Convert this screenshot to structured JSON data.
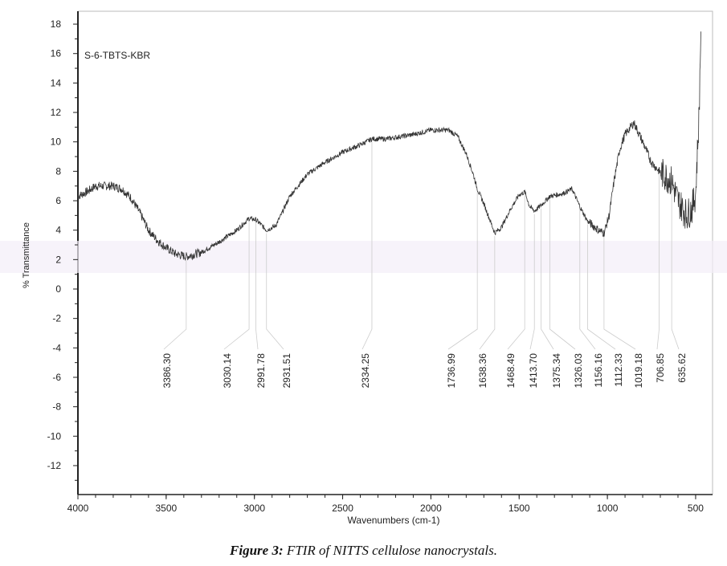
{
  "chart_data": {
    "type": "line",
    "title": "",
    "sample_label": "S-6-TBTS-KBR",
    "xlabel": "Wavenumbers (cm-1)",
    "ylabel": "% Transmittance",
    "xlim": [
      4000,
      450
    ],
    "ylim": [
      -13.5,
      18.5
    ],
    "x_reversed": true,
    "grid": false,
    "line_color": "#333333",
    "x_ticks": [
      4000,
      3500,
      3000,
      2500,
      2000,
      1500,
      1000,
      500
    ],
    "y_ticks": [
      18,
      16,
      14,
      12,
      10,
      8,
      6,
      4,
      2,
      0,
      -2,
      -4,
      -6,
      -8,
      -10,
      -12
    ],
    "series": [
      {
        "x": [
          4000,
          3950,
          3900,
          3850,
          3800,
          3750,
          3700,
          3650,
          3600,
          3550,
          3500,
          3450,
          3386,
          3300,
          3200,
          3100,
          3030,
          2991,
          2931,
          2880,
          2850,
          2800,
          2700,
          2600,
          2500,
          2400,
          2334,
          2250,
          2100,
          2000,
          1900,
          1850,
          1800,
          1760,
          1737,
          1700,
          1660,
          1638,
          1600,
          1550,
          1500,
          1468,
          1440,
          1413,
          1375,
          1326,
          1250,
          1200,
          1156,
          1112,
          1050,
          1019,
          990,
          960,
          930,
          900,
          850,
          800,
          750,
          706,
          650,
          636,
          600,
          550,
          520,
          500,
          480,
          470
        ],
        "y": [
          6.3,
          6.6,
          7.0,
          7.0,
          7.0,
          6.8,
          6.2,
          5.2,
          4.0,
          3.3,
          2.8,
          2.4,
          2.2,
          2.5,
          3.2,
          4.0,
          4.8,
          4.7,
          4.0,
          4.3,
          5.0,
          6.3,
          7.8,
          8.6,
          9.3,
          9.8,
          10.2,
          10.2,
          10.5,
          10.8,
          10.8,
          10.4,
          9.2,
          7.8,
          6.8,
          5.8,
          4.5,
          3.8,
          4.2,
          5.4,
          6.4,
          6.6,
          5.6,
          5.3,
          5.7,
          6.3,
          6.5,
          6.8,
          5.6,
          4.6,
          4.0,
          3.8,
          5.0,
          7.5,
          9.5,
          10.5,
          11.3,
          10.0,
          8.6,
          8.0,
          7.5,
          7.3,
          6.0,
          5.0,
          5.5,
          6.5,
          12,
          18
        ]
      }
    ],
    "annotations": [
      "3386.30",
      "3030.14",
      "2991.78",
      "2931.51",
      "2334.25",
      "1736.99",
      "1638.36",
      "1468.49",
      "1413.70",
      "1375.34",
      "1326.03",
      "1156.16",
      "1112.33",
      "1019.18",
      "706.85",
      "635.62"
    ]
  },
  "caption": {
    "label": "Figure 3:",
    "text": " FTIR of NITTS cellulose nanocrystals."
  }
}
